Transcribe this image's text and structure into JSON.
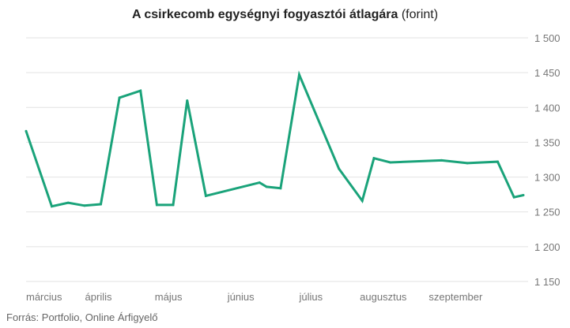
{
  "chart_data": {
    "type": "line",
    "title_bold": "A csirkecomb egységnyi fogyasztói átlagára",
    "title_unit": "(forint)",
    "source": "Forrás: Portfolio, Online Árfigyelő",
    "ylim": [
      1150,
      1500
    ],
    "yticks": [
      {
        "value": 1500,
        "label": "1 500"
      },
      {
        "value": 1450,
        "label": "1 450"
      },
      {
        "value": 1400,
        "label": "1 400"
      },
      {
        "value": 1350,
        "label": "1 350"
      },
      {
        "value": 1300,
        "label": "1 300"
      },
      {
        "value": 1250,
        "label": "1 250"
      },
      {
        "value": 1200,
        "label": "1 200"
      },
      {
        "value": 1150,
        "label": "1 150"
      }
    ],
    "x_start": "2023-03-01",
    "x_end": "2023-09-30",
    "month_labels": [
      {
        "date": "2023-03-01",
        "label": "március"
      },
      {
        "date": "2023-04-01",
        "label": "április"
      },
      {
        "date": "2023-05-01",
        "label": "május"
      },
      {
        "date": "2023-06-01",
        "label": "június"
      },
      {
        "date": "2023-07-01",
        "label": "július"
      },
      {
        "date": "2023-08-01",
        "label": "augusztus"
      },
      {
        "date": "2023-09-01",
        "label": "szeptember"
      }
    ],
    "series": [
      {
        "color": "#1aa37a",
        "points": [
          {
            "date": "2023-03-01",
            "value": 1366
          },
          {
            "date": "2023-03-12",
            "value": 1258
          },
          {
            "date": "2023-03-19",
            "value": 1263
          },
          {
            "date": "2023-03-26",
            "value": 1259
          },
          {
            "date": "2023-04-02",
            "value": 1261
          },
          {
            "date": "2023-04-10",
            "value": 1414
          },
          {
            "date": "2023-04-19",
            "value": 1424
          },
          {
            "date": "2023-04-26",
            "value": 1260
          },
          {
            "date": "2023-05-03",
            "value": 1260
          },
          {
            "date": "2023-05-09",
            "value": 1410
          },
          {
            "date": "2023-05-17",
            "value": 1273
          },
          {
            "date": "2023-06-09",
            "value": 1292
          },
          {
            "date": "2023-06-12",
            "value": 1286
          },
          {
            "date": "2023-06-18",
            "value": 1284
          },
          {
            "date": "2023-06-26",
            "value": 1447
          },
          {
            "date": "2023-07-13",
            "value": 1312
          },
          {
            "date": "2023-07-23",
            "value": 1266
          },
          {
            "date": "2023-07-28",
            "value": 1327
          },
          {
            "date": "2023-08-04",
            "value": 1321
          },
          {
            "date": "2023-08-26",
            "value": 1324
          },
          {
            "date": "2023-09-06",
            "value": 1320
          },
          {
            "date": "2023-09-19",
            "value": 1322
          },
          {
            "date": "2023-09-26",
            "value": 1271
          },
          {
            "date": "2023-09-30",
            "value": 1274
          }
        ]
      }
    ],
    "grid": true
  }
}
